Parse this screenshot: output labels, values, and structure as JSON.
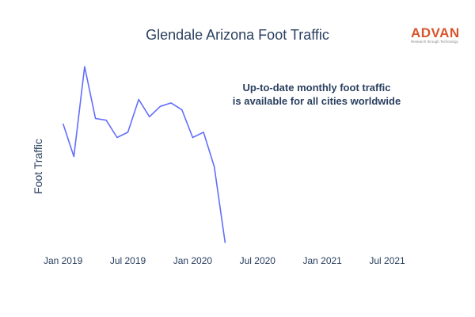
{
  "chart_data": {
    "type": "line",
    "title": "Glendale Arizona Foot Traffic",
    "xlabel": "",
    "ylabel": "Foot Traffic",
    "annotation": [
      "Up-to-date monthly foot traffic",
      "is available for all cities worldwide"
    ],
    "x_ticks": [
      "Jan 2019",
      "Jul 2019",
      "Jan 2020",
      "Jul 2020",
      "Jan 2021",
      "Jul 2021"
    ],
    "xlim": [
      "2018-12-01",
      "2021-10-01"
    ],
    "ylim": [
      0,
      100
    ],
    "grid": false,
    "line_color": "#636efa",
    "series": [
      {
        "x": [
          "2019-01",
          "2019-02",
          "2019-03",
          "2019-04",
          "2019-05",
          "2019-06",
          "2019-07",
          "2019-08",
          "2019-09",
          "2019-10",
          "2019-11",
          "2019-12",
          "2020-01",
          "2020-02",
          "2020-03",
          "2020-04"
        ],
        "values": [
          72,
          53,
          105,
          75,
          74,
          64,
          67,
          86,
          76,
          82,
          84,
          80,
          64,
          67,
          47,
          3
        ]
      }
    ]
  },
  "logo": {
    "word": "ADVAN",
    "tagline": "Research through Technology",
    "color": "#d9542b"
  }
}
